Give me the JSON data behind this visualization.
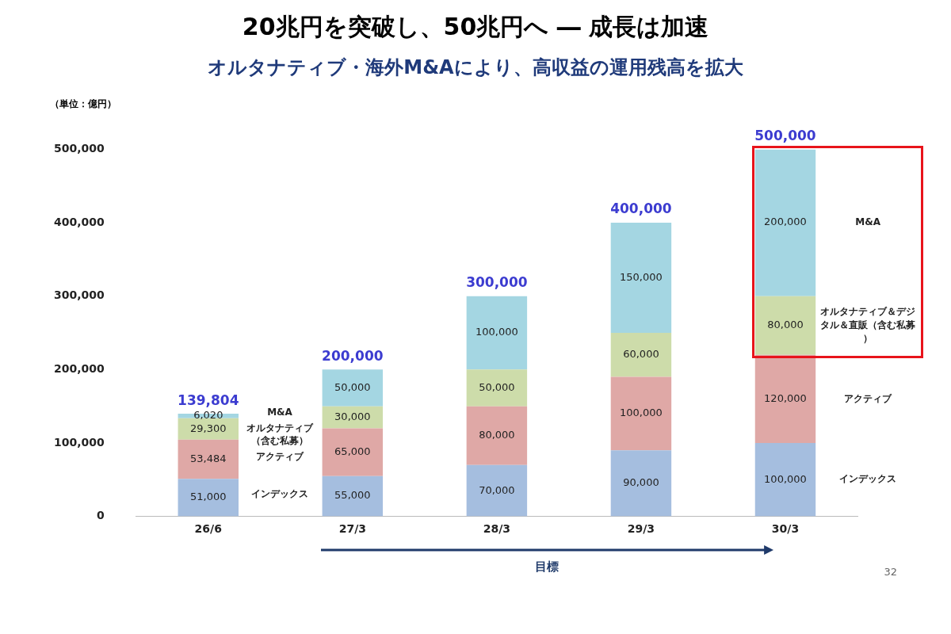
{
  "chart_data": {
    "type": "bar",
    "title": "20兆円を突破し、50兆円へ ― 成長は加速",
    "subtitle": "オルタナティブ・海外M&Aにより、高収益の運用残高を拡大",
    "ylabel": "（単位：億円）",
    "categories": [
      "26/6",
      "27/3",
      "28/3",
      "29/3",
      "30/3"
    ],
    "stacked": true,
    "legend": false,
    "grid": false,
    "series": [
      {
        "name": "インデックス",
        "color": "#a5bedf",
        "values": [
          51000,
          55000,
          70000,
          90000,
          100000
        ],
        "value_labels": [
          "51,000",
          "55,000",
          "70,000",
          "90,000",
          "100,000"
        ]
      },
      {
        "name": "アクティブ",
        "color": "#dfa8a6",
        "values": [
          53484,
          65000,
          80000,
          100000,
          120000
        ],
        "value_labels": [
          "53,484",
          "65,000",
          "80,000",
          "100,000",
          "120,000"
        ]
      },
      {
        "name": "オルタナティブ＆デジタル＆直販（含む私募）",
        "color": "#cddcaa",
        "values": [
          29300,
          30000,
          50000,
          60000,
          80000
        ],
        "value_labels": [
          "29,300",
          "30,000",
          "50,000",
          "60,000",
          "80,000"
        ]
      },
      {
        "name": "M&A",
        "color": "#a4d6e2",
        "values": [
          6020,
          50000,
          100000,
          150000,
          200000
        ],
        "value_labels": [
          "6,020",
          "50,000",
          "100,000",
          "150,000",
          "200,000"
        ]
      }
    ],
    "totals": [
      "139,804",
      "200,000",
      "300,000",
      "400,000",
      "500,000"
    ],
    "ylim": [
      0,
      500000
    ],
    "yticks": [
      0,
      {
        "value": 100000,
        "label": "100,000"
      },
      {
        "value": 200000,
        "label": "200,000"
      },
      {
        "value": 300000,
        "label": "300,000"
      },
      {
        "value": 400000,
        "label": "400,000"
      },
      {
        "value": 500000,
        "label": "500,000"
      }
    ],
    "annotations": [
      "目標",
      "M&A",
      "オルタナティブ（含む私募）",
      "アクティブ",
      "インデックス",
      "32"
    ]
  }
}
